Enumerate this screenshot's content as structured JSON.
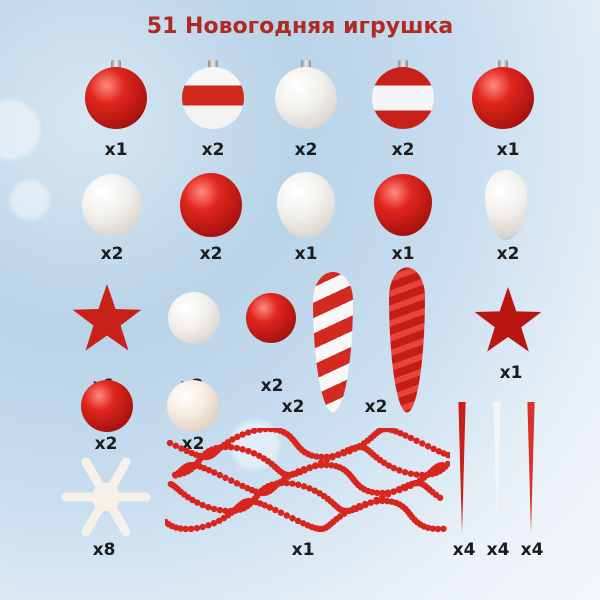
{
  "title": "51 Новогодняя игрушка",
  "colors": {
    "title": "#b02a22",
    "ornament_red": "#d8251d",
    "ornament_white": "#f3f1ee"
  },
  "labels": {
    "row1": [
      "x1",
      "x2",
      "x2",
      "x2",
      "x1"
    ],
    "row2": [
      "x2",
      "x2",
      "x1",
      "x1",
      "x2"
    ],
    "row3": [
      "x1",
      "x2",
      "x2",
      "x2",
      "x2",
      "x1"
    ],
    "row4": [
      "x2",
      "x2"
    ],
    "bottom": [
      "x8",
      "x1",
      "x4",
      "x4",
      "x4"
    ]
  }
}
